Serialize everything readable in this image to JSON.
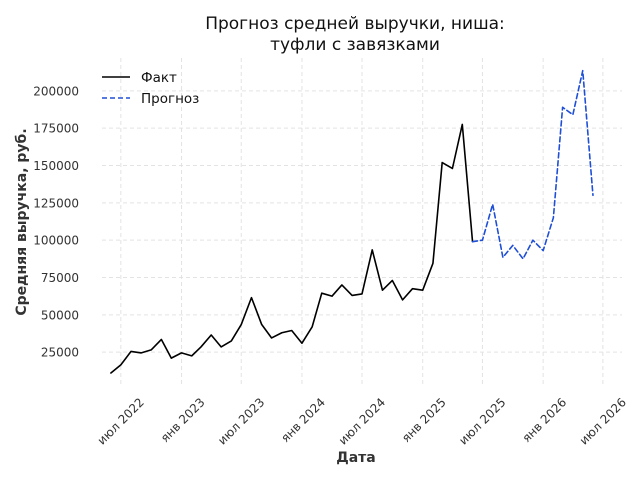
{
  "chart_data": {
    "type": "line",
    "title_lines": [
      "Прогноз средней выручки, ниша:",
      "туфли с завязками"
    ],
    "xlabel": "Дата",
    "ylabel": "Средняя выручка, руб.",
    "x_tick_labels": [
      {
        "date": "2022-07-01",
        "label": "июл 2022"
      },
      {
        "date": "2023-01-01",
        "label": "янв 2023"
      },
      {
        "date": "2023-07-01",
        "label": "июл 2023"
      },
      {
        "date": "2024-01-01",
        "label": "янв 2024"
      },
      {
        "date": "2024-07-01",
        "label": "июл 2024"
      },
      {
        "date": "2025-01-01",
        "label": "янв 2025"
      },
      {
        "date": "2025-07-01",
        "label": "июл 2025"
      },
      {
        "date": "2026-01-01",
        "label": "янв 2026"
      },
      {
        "date": "2026-07-01",
        "label": "июл 2026"
      }
    ],
    "y_ticks": [
      25000,
      50000,
      75000,
      100000,
      125000,
      150000,
      175000,
      200000
    ],
    "ylim": [
      3000,
      222000
    ],
    "xlim": [
      "2022-05-05",
      "2026-08-28"
    ],
    "grid": true,
    "legend_position": "top-left",
    "series": [
      {
        "name": "Факт",
        "color": "#000000",
        "style": "solid",
        "points": [
          {
            "x": "2022-06-01",
            "y": 11000
          },
          {
            "x": "2022-07-01",
            "y": 16500
          },
          {
            "x": "2022-08-01",
            "y": 25500
          },
          {
            "x": "2022-09-01",
            "y": 24500
          },
          {
            "x": "2022-10-01",
            "y": 26500
          },
          {
            "x": "2022-11-01",
            "y": 33500
          },
          {
            "x": "2022-12-01",
            "y": 21000
          },
          {
            "x": "2023-01-01",
            "y": 24500
          },
          {
            "x": "2023-02-01",
            "y": 22500
          },
          {
            "x": "2023-03-01",
            "y": 28500
          },
          {
            "x": "2023-04-01",
            "y": 36500
          },
          {
            "x": "2023-05-01",
            "y": 28500
          },
          {
            "x": "2023-06-01",
            "y": 32500
          },
          {
            "x": "2023-07-01",
            "y": 43500
          },
          {
            "x": "2023-08-01",
            "y": 61500
          },
          {
            "x": "2023-09-01",
            "y": 43500
          },
          {
            "x": "2023-10-01",
            "y": 34500
          },
          {
            "x": "2023-11-01",
            "y": 38000
          },
          {
            "x": "2023-12-01",
            "y": 39500
          },
          {
            "x": "2024-01-01",
            "y": 31000
          },
          {
            "x": "2024-02-01",
            "y": 42000
          },
          {
            "x": "2024-03-01",
            "y": 64500
          },
          {
            "x": "2024-04-01",
            "y": 62500
          },
          {
            "x": "2024-05-01",
            "y": 70000
          },
          {
            "x": "2024-06-01",
            "y": 63000
          },
          {
            "x": "2024-07-01",
            "y": 64000
          },
          {
            "x": "2024-08-01",
            "y": 93500
          },
          {
            "x": "2024-09-01",
            "y": 66500
          },
          {
            "x": "2024-10-01",
            "y": 73000
          },
          {
            "x": "2024-11-01",
            "y": 60000
          },
          {
            "x": "2024-12-01",
            "y": 67500
          },
          {
            "x": "2025-01-01",
            "y": 66500
          },
          {
            "x": "2025-02-01",
            "y": 84500
          },
          {
            "x": "2025-03-01",
            "y": 152000
          },
          {
            "x": "2025-04-01",
            "y": 148000
          },
          {
            "x": "2025-05-01",
            "y": 177500
          },
          {
            "x": "2025-06-01",
            "y": 99000
          }
        ]
      },
      {
        "name": "Прогноз",
        "color": "#1f4fd6",
        "style": "dashed",
        "points": [
          {
            "x": "2025-06-01",
            "y": 99000
          },
          {
            "x": "2025-07-01",
            "y": 100000
          },
          {
            "x": "2025-08-01",
            "y": 124000
          },
          {
            "x": "2025-09-01",
            "y": 88500
          },
          {
            "x": "2025-10-01",
            "y": 96500
          },
          {
            "x": "2025-11-01",
            "y": 87500
          },
          {
            "x": "2025-12-01",
            "y": 100000
          },
          {
            "x": "2026-01-01",
            "y": 93000
          },
          {
            "x": "2026-02-01",
            "y": 115000
          },
          {
            "x": "2026-03-01",
            "y": 189000
          },
          {
            "x": "2026-04-01",
            "y": 184000
          },
          {
            "x": "2026-05-01",
            "y": 213500
          },
          {
            "x": "2026-06-01",
            "y": 130000
          }
        ]
      }
    ]
  }
}
